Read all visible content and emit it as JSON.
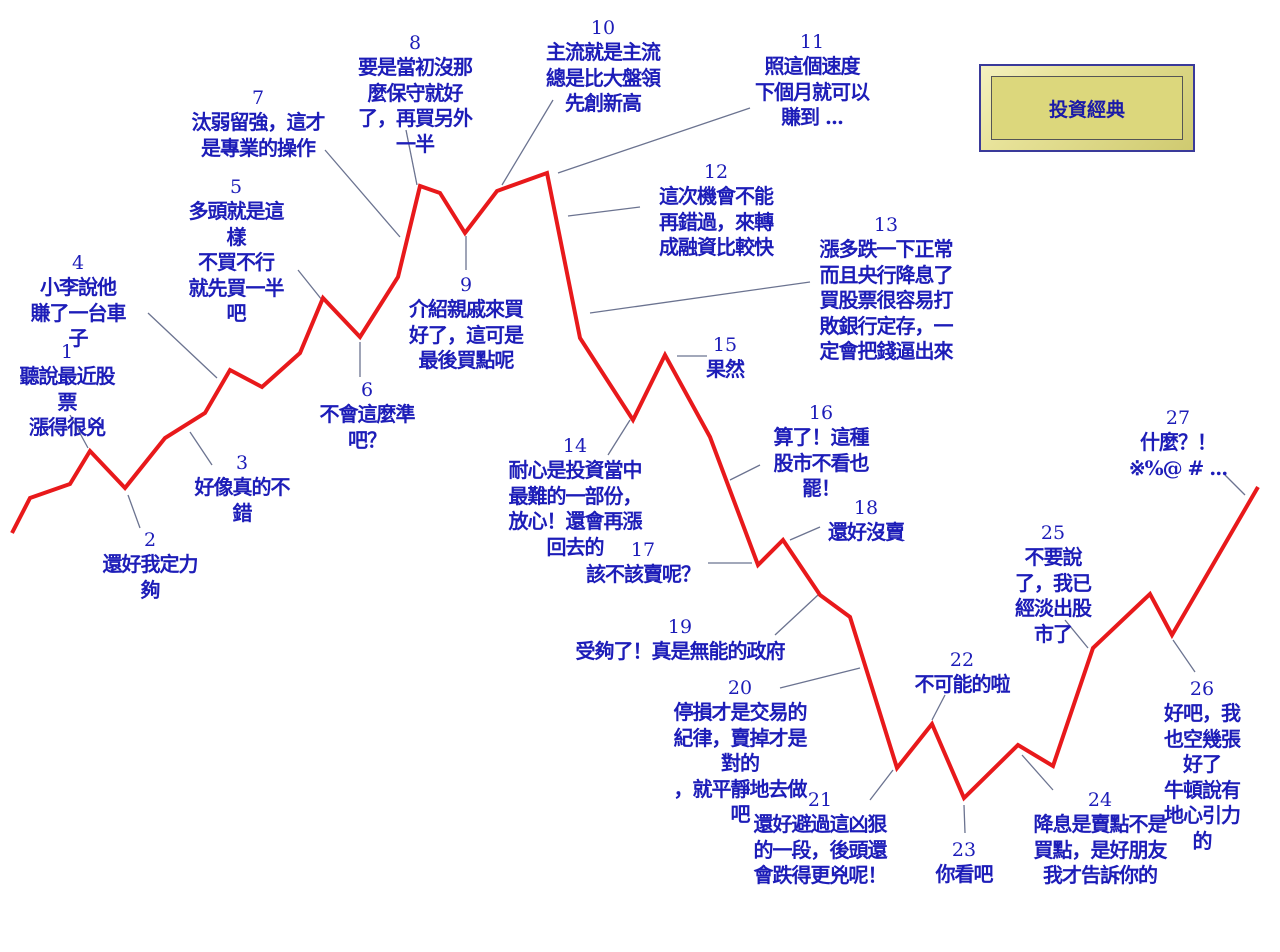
{
  "title_button": {
    "label": "投資經典",
    "fill_color": "#dcd77c",
    "border_color": "#3a3a9a"
  },
  "colors": {
    "line": "#e8191b",
    "leader": "#6b7390",
    "text": "#1d1db8"
  },
  "annotations": [
    {
      "number": "1",
      "lines": [
        "聽說最近股",
        "票",
        "漲得很兇"
      ]
    },
    {
      "number": "2",
      "lines": [
        "還好我定力",
        "夠"
      ]
    },
    {
      "number": "3",
      "lines": [
        "好像真的不",
        "錯"
      ]
    },
    {
      "number": "4",
      "lines": [
        "小李說他",
        "賺了一台車",
        "子"
      ]
    },
    {
      "number": "5",
      "lines": [
        "多頭就是這",
        "樣",
        "不買不行",
        "就先買一半",
        "吧"
      ]
    },
    {
      "number": "6",
      "lines": [
        "不會這麼準",
        "吧？"
      ]
    },
    {
      "number": "7",
      "lines": [
        "汰弱留強，這才",
        "是專業的操作"
      ]
    },
    {
      "number": "8",
      "lines": [
        "要是當初沒那",
        "麼保守就好",
        "了，再買另外",
        "一半"
      ]
    },
    {
      "number": "9",
      "lines": [
        "介紹親戚來買",
        "好了，這可是",
        "最後買點呢"
      ]
    },
    {
      "number": "10",
      "lines": [
        "主流就是主流",
        "總是比大盤領",
        "先創新高"
      ]
    },
    {
      "number": "11",
      "lines": [
        "照這個速度",
        "下個月就可以",
        "賺到 ..."
      ]
    },
    {
      "number": "12",
      "lines": [
        "這次機會不能",
        "再錯過，來轉",
        "成融資比較快"
      ]
    },
    {
      "number": "13",
      "lines": [
        "漲多跌一下正常",
        "而且央行降息了",
        "買股票很容易打",
        "敗銀行定存，一",
        "定會把錢逼出來"
      ]
    },
    {
      "number": "14",
      "lines": [
        "耐心是投資當中",
        "最難的一部份，",
        "放心！還會再漲",
        "回去的"
      ]
    },
    {
      "number": "15",
      "lines": [
        "果然"
      ]
    },
    {
      "number": "16",
      "lines": [
        "算了！這種",
        "股市不看也",
        "罷！"
      ]
    },
    {
      "number": "17",
      "lines": [
        "該不該賣呢？"
      ]
    },
    {
      "number": "18",
      "lines": [
        "還好沒賣"
      ]
    },
    {
      "number": "19",
      "lines": [
        "受夠了！真是無能的政府"
      ]
    },
    {
      "number": "20",
      "lines": [
        "停損才是交易的",
        "紀律，賣掉才是",
        "對的",
        "，就平靜地去做",
        "吧"
      ]
    },
    {
      "number": "21",
      "lines": [
        "還好避過這凶狠",
        "的一段，後頭還",
        "會跌得更兇呢！"
      ]
    },
    {
      "number": "22",
      "lines": [
        "不可能的啦"
      ]
    },
    {
      "number": "23",
      "lines": [
        "你看吧"
      ]
    },
    {
      "number": "24",
      "lines": [
        "降息是賣點不是",
        "買點，是好朋友",
        "我才告訴你的"
      ]
    },
    {
      "number": "25",
      "lines": [
        "不要說",
        "了，我已",
        "經淡出股",
        "市了"
      ]
    },
    {
      "number": "26",
      "lines": [
        "好吧，我",
        "也空幾張",
        "好了",
        "牛頓說有",
        "地心引力",
        "的"
      ]
    },
    {
      "number": "27",
      "lines": [
        "什麼？！",
        "※%@ # ..."
      ]
    }
  ]
}
